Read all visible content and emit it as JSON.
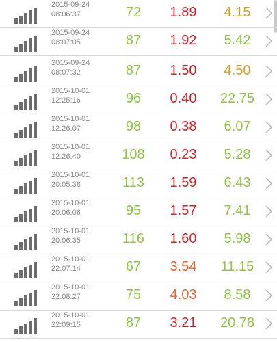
{
  "colors": {
    "green": "#8dc63f",
    "red": "#d0232a",
    "orange": "#e8652e",
    "amber": "#d4a21c",
    "gray_text": "#8a8a8a",
    "signal_gray": "#6e6e6e"
  },
  "icons": {
    "signal": "signal-strength-icon",
    "chevron": "chevron-right-icon"
  },
  "rows": [
    {
      "date": "2015-09-24",
      "time": "08:06:37",
      "v1": "72",
      "v2": "1.89",
      "v3": "4.15",
      "c1": "green",
      "c2": "red",
      "c3": "amber"
    },
    {
      "date": "2015-09-24",
      "time": "08:07:05",
      "v1": "87",
      "v2": "1.92",
      "v3": "5.42",
      "c1": "green",
      "c2": "red",
      "c3": "green"
    },
    {
      "date": "2015-09-24",
      "time": "08:07:32",
      "v1": "87",
      "v2": "1.50",
      "v3": "4.50",
      "c1": "green",
      "c2": "red",
      "c3": "amber"
    },
    {
      "date": "2015-10-01",
      "time": "12:25:16",
      "v1": "96",
      "v2": "0.40",
      "v3": "22.75",
      "c1": "green",
      "c2": "red",
      "c3": "green"
    },
    {
      "date": "2015-10-01",
      "time": "12:26:07",
      "v1": "98",
      "v2": "0.38",
      "v3": "6.07",
      "c1": "green",
      "c2": "red",
      "c3": "green"
    },
    {
      "date": "2015-10-01",
      "time": "12:26:40",
      "v1": "108",
      "v2": "0.23",
      "v3": "5.28",
      "c1": "green",
      "c2": "red",
      "c3": "green"
    },
    {
      "date": "2015-10-01",
      "time": "20:05:38",
      "v1": "113",
      "v2": "1.59",
      "v3": "6.43",
      "c1": "green",
      "c2": "red",
      "c3": "green"
    },
    {
      "date": "2015-10-01",
      "time": "20:06:06",
      "v1": "95",
      "v2": "1.57",
      "v3": "7.41",
      "c1": "green",
      "c2": "red",
      "c3": "green"
    },
    {
      "date": "2015-10-01",
      "time": "20:06:35",
      "v1": "116",
      "v2": "1.60",
      "v3": "5.98",
      "c1": "green",
      "c2": "red",
      "c3": "green"
    },
    {
      "date": "2015-10-01",
      "time": "22:07:14",
      "v1": "67",
      "v2": "3.54",
      "v3": "11.15",
      "c1": "green",
      "c2": "orange",
      "c3": "green"
    },
    {
      "date": "2015-10-01",
      "time": "22:08:27",
      "v1": "75",
      "v2": "4.03",
      "v3": "8.58",
      "c1": "green",
      "c2": "orange",
      "c3": "green"
    },
    {
      "date": "2015-10-01",
      "time": "22:09:15",
      "v1": "87",
      "v2": "3.21",
      "v3": "20.78",
      "c1": "green",
      "c2": "red",
      "c3": "green"
    }
  ]
}
